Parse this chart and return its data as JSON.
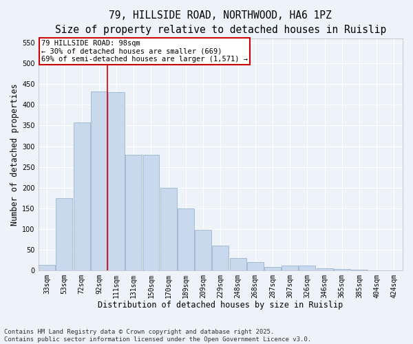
{
  "title_line1": "79, HILLSIDE ROAD, NORTHWOOD, HA6 1PZ",
  "title_line2": "Size of property relative to detached houses in Ruislip",
  "xlabel": "Distribution of detached houses by size in Ruislip",
  "ylabel": "Number of detached properties",
  "categories": [
    "33sqm",
    "53sqm",
    "72sqm",
    "92sqm",
    "111sqm",
    "131sqm",
    "150sqm",
    "170sqm",
    "189sqm",
    "209sqm",
    "229sqm",
    "248sqm",
    "268sqm",
    "287sqm",
    "307sqm",
    "326sqm",
    "346sqm",
    "365sqm",
    "385sqm",
    "404sqm",
    "424sqm"
  ],
  "values": [
    13,
    175,
    358,
    432,
    430,
    280,
    280,
    200,
    150,
    98,
    60,
    30,
    20,
    8,
    12,
    12,
    5,
    3,
    1,
    0,
    0
  ],
  "bar_color": "#c9d9ed",
  "bar_edge_color": "#9ab4d0",
  "background_color": "#eef2f9",
  "grid_color": "#ffffff",
  "red_line_x": 3.5,
  "annotation_text1": "79 HILLSIDE ROAD: 98sqm",
  "annotation_text2": "← 30% of detached houses are smaller (669)",
  "annotation_text3": "69% of semi-detached houses are larger (1,571) →",
  "annotation_box_color": "#ffffff",
  "annotation_border_color": "#cc0000",
  "vline_color": "#cc0000",
  "ylim": [
    0,
    560
  ],
  "yticks": [
    0,
    50,
    100,
    150,
    200,
    250,
    300,
    350,
    400,
    450,
    500,
    550
  ],
  "footer_line1": "Contains HM Land Registry data © Crown copyright and database right 2025.",
  "footer_line2": "Contains public sector information licensed under the Open Government Licence v3.0.",
  "title_fontsize": 10.5,
  "subtitle_fontsize": 9.5,
  "axis_label_fontsize": 8.5,
  "tick_fontsize": 7,
  "annotation_fontsize": 7.5,
  "footer_fontsize": 6.5
}
